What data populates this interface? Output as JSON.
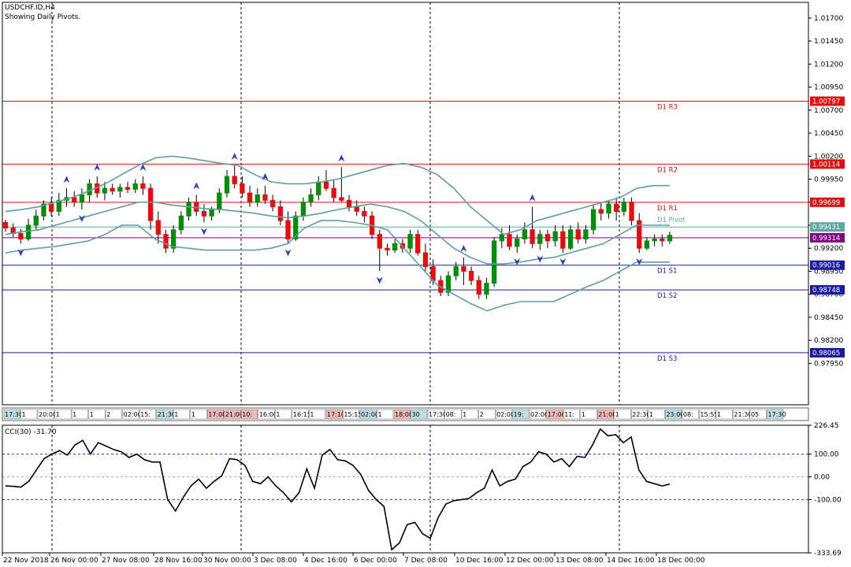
{
  "header": {
    "symbol_title": "USDCHF.ID,H4",
    "subtitle": "Showing Daily Pivots."
  },
  "chart_data": [
    {
      "type": "candlestick",
      "title": "USDCHF.ID,H4",
      "ylim": [
        0.975,
        1.0187
      ],
      "y_ticks": [
        "1.01700",
        "1.01450",
        "1.01200",
        "1.00950",
        "1.00700",
        "1.00450",
        "1.00200",
        "0.99950",
        "0.99700",
        "0.99450",
        "0.99200",
        "0.98950",
        "0.98700",
        "0.98450",
        "0.98200",
        "0.97950"
      ],
      "pivots": [
        {
          "name": "D1 R3",
          "value": 1.00797,
          "label": "1.00797",
          "color": "#dd1111"
        },
        {
          "name": "D1 R2",
          "value": 1.00114,
          "label": "1.00114",
          "color": "#dd1111"
        },
        {
          "name": "D1 R1",
          "value": 0.99699,
          "label": "0.99699",
          "color": "#dd1111"
        },
        {
          "name": "D1 Pivot",
          "value": 0.99431,
          "label": "0.99431",
          "color": "#5fa8a0"
        },
        {
          "name": "",
          "value": 0.99314,
          "label": "0.99314",
          "color": "#800080"
        },
        {
          "name": "D1 S1",
          "value": 0.99016,
          "label": "0.99016",
          "color": "#1a1aa0"
        },
        {
          "name": "D1 S2",
          "value": 0.98748,
          "label": "0.98748",
          "color": "#1a1aa0"
        },
        {
          "name": "D1 S3",
          "value": 0.98065,
          "label": "0.98065",
          "color": "#1a1aa0"
        }
      ],
      "bollinger": {
        "upper": [
          0.996,
          0.9962,
          0.9965,
          0.997,
          0.9975,
          0.9982,
          0.999,
          1.0,
          1.001,
          1.0018,
          1.002,
          1.0018,
          1.0015,
          1.0012,
          1.001,
          1.0,
          0.9992,
          0.999,
          0.999,
          0.9992,
          0.9995,
          1.0,
          1.0005,
          1.001,
          1.0012,
          1.0008,
          1.0,
          0.9985,
          0.9965,
          0.995,
          0.9935,
          0.994,
          0.995,
          0.9955,
          0.996,
          0.9965,
          0.997,
          0.9975,
          0.9985,
          0.9988,
          0.9988
        ],
        "middle": [
          0.9935,
          0.9938,
          0.994,
          0.9945,
          0.995,
          0.9955,
          0.996,
          0.9965,
          0.997,
          0.997,
          0.9967,
          0.9965,
          0.9963,
          0.9962,
          0.996,
          0.9958,
          0.9955,
          0.9953,
          0.9955,
          0.9958,
          0.9962,
          0.9965,
          0.9968,
          0.9965,
          0.996,
          0.995,
          0.9935,
          0.992,
          0.991,
          0.9903,
          0.9903,
          0.9905,
          0.9908,
          0.991,
          0.9915,
          0.992,
          0.9925,
          0.9935,
          0.9945,
          0.9945,
          0.9945
        ],
        "lower": [
          0.9915,
          0.9918,
          0.992,
          0.9922,
          0.9925,
          0.9928,
          0.9935,
          0.9945,
          0.9945,
          0.993,
          0.9922,
          0.992,
          0.9918,
          0.9918,
          0.9918,
          0.9918,
          0.992,
          0.9925,
          0.9942,
          0.995,
          0.995,
          0.9948,
          0.9945,
          0.994,
          0.992,
          0.99,
          0.988,
          0.987,
          0.986,
          0.9852,
          0.9858,
          0.9862,
          0.9862,
          0.9862,
          0.987,
          0.9878,
          0.9885,
          0.9895,
          0.9905,
          0.9905,
          0.9905
        ]
      },
      "candles": [
        [
          0.9948,
          0.9951,
          0.9938,
          0.9942
        ],
        [
          0.9942,
          0.9947,
          0.9932,
          0.9936
        ],
        [
          0.9936,
          0.9941,
          0.9925,
          0.993
        ],
        [
          0.993,
          0.9952,
          0.9928,
          0.9945
        ],
        [
          0.9945,
          0.9962,
          0.994,
          0.9955
        ],
        [
          0.9955,
          0.9972,
          0.995,
          0.9968
        ],
        [
          0.9968,
          0.9975,
          0.9955,
          0.996
        ],
        [
          0.996,
          0.998,
          0.9955,
          0.9972
        ],
        [
          0.9972,
          0.9985,
          0.9965,
          0.9975
        ],
        [
          0.9975,
          0.9982,
          0.9965,
          0.997
        ],
        [
          0.997,
          0.9985,
          0.9962,
          0.9978
        ],
        [
          0.9978,
          0.9995,
          0.997,
          0.999
        ],
        [
          0.999,
          0.9998,
          0.9975,
          0.998
        ],
        [
          0.998,
          0.9992,
          0.9972,
          0.9985
        ],
        [
          0.9985,
          0.999,
          0.9978,
          0.9982
        ],
        [
          0.9982,
          0.999,
          0.9975,
          0.9986
        ],
        [
          0.9986,
          0.9992,
          0.998,
          0.9984
        ],
        [
          0.9984,
          0.9995,
          0.998,
          0.999
        ],
        [
          0.999,
          0.9998,
          0.9978,
          0.9985
        ],
        [
          0.9985,
          0.999,
          0.994,
          0.995
        ],
        [
          0.995,
          0.996,
          0.9925,
          0.9935
        ],
        [
          0.9935,
          0.994,
          0.9915,
          0.992
        ],
        [
          0.992,
          0.9945,
          0.9915,
          0.994
        ],
        [
          0.994,
          0.996,
          0.9935,
          0.9955
        ],
        [
          0.9955,
          0.9975,
          0.995,
          0.997
        ],
        [
          0.997,
          0.9978,
          0.9955,
          0.996
        ],
        [
          0.996,
          0.9968,
          0.9948,
          0.9955
        ],
        [
          0.9955,
          0.9965,
          0.995,
          0.9962
        ],
        [
          0.9962,
          0.9985,
          0.9958,
          0.998
        ],
        [
          0.998,
          1.0005,
          0.9975,
          0.9998
        ],
        [
          0.9998,
          1.001,
          0.9985,
          0.999
        ],
        [
          0.999,
          0.9998,
          0.9975,
          0.998
        ],
        [
          0.998,
          0.9988,
          0.9965,
          0.997
        ],
        [
          0.997,
          0.9985,
          0.9965,
          0.9978
        ],
        [
          0.9978,
          0.9988,
          0.9968,
          0.9972
        ],
        [
          0.9972,
          0.9978,
          0.996,
          0.9965
        ],
        [
          0.9965,
          0.9972,
          0.9945,
          0.995
        ],
        [
          0.995,
          0.996,
          0.9925,
          0.993
        ],
        [
          0.993,
          0.996,
          0.9928,
          0.9955
        ],
        [
          0.9955,
          0.9975,
          0.995,
          0.997
        ],
        [
          0.997,
          0.9985,
          0.9965,
          0.9978
        ],
        [
          0.9978,
          0.9998,
          0.9972,
          0.9992
        ],
        [
          0.9992,
          1.0005,
          0.9982,
          0.9985
        ],
        [
          0.9985,
          0.9995,
          0.997,
          0.9975
        ],
        [
          0.9975,
          1.0008,
          0.997,
          0.9972
        ],
        [
          0.9972,
          0.9978,
          0.996,
          0.9965
        ],
        [
          0.9965,
          0.9972,
          0.9955,
          0.996
        ],
        [
          0.996,
          0.9965,
          0.9948,
          0.9955
        ],
        [
          0.9955,
          0.996,
          0.993,
          0.9935
        ],
        [
          0.9935,
          0.994,
          0.9895,
          0.992
        ],
        [
          0.992,
          0.9925,
          0.9912,
          0.9918
        ],
        [
          0.9918,
          0.993,
          0.9915,
          0.9925
        ],
        [
          0.9925,
          0.993,
          0.9915,
          0.992
        ],
        [
          0.992,
          0.994,
          0.9915,
          0.9935
        ],
        [
          0.9935,
          0.994,
          0.9912,
          0.9915
        ],
        [
          0.9915,
          0.9925,
          0.9895,
          0.99
        ],
        [
          0.99,
          0.9908,
          0.988,
          0.9885
        ],
        [
          0.9885,
          0.989,
          0.9868,
          0.9872
        ],
        [
          0.9872,
          0.9895,
          0.9868,
          0.989
        ],
        [
          0.989,
          0.9905,
          0.9885,
          0.99
        ],
        [
          0.99,
          0.991,
          0.988,
          0.9895
        ],
        [
          0.9895,
          0.99,
          0.988,
          0.9885
        ],
        [
          0.9885,
          0.989,
          0.9865,
          0.987
        ],
        [
          0.987,
          0.9888,
          0.9865,
          0.9882
        ],
        [
          0.9882,
          0.9932,
          0.9878,
          0.9928
        ],
        [
          0.9928,
          0.9942,
          0.992,
          0.9935
        ],
        [
          0.9935,
          0.9945,
          0.9918,
          0.9922
        ],
        [
          0.9922,
          0.9935,
          0.9915,
          0.993
        ],
        [
          0.993,
          0.9948,
          0.9925,
          0.994
        ],
        [
          0.994,
          0.9965,
          0.992,
          0.9925
        ],
        [
          0.9925,
          0.994,
          0.9918,
          0.9935
        ],
        [
          0.9935,
          0.994,
          0.992,
          0.9928
        ],
        [
          0.9928,
          0.9945,
          0.9922,
          0.9938
        ],
        [
          0.9938,
          0.9945,
          0.9915,
          0.992
        ],
        [
          0.992,
          0.9945,
          0.9918,
          0.994
        ],
        [
          0.994,
          0.9948,
          0.9925,
          0.993
        ],
        [
          0.993,
          0.9945,
          0.9925,
          0.994
        ],
        [
          0.994,
          0.9968,
          0.9935,
          0.9962
        ],
        [
          0.9962,
          0.997,
          0.995,
          0.9958
        ],
        [
          0.9958,
          0.9972,
          0.9952,
          0.9968
        ],
        [
          0.9968,
          0.9975,
          0.995,
          0.996
        ],
        [
          0.996,
          0.9975,
          0.9955,
          0.997
        ],
        [
          0.997,
          0.9975,
          0.9945,
          0.995
        ],
        [
          0.995,
          0.9958,
          0.9915,
          0.992
        ],
        [
          0.992,
          0.9932,
          0.9918,
          0.9928
        ],
        [
          0.9928,
          0.9935,
          0.9922,
          0.993
        ],
        [
          0.993,
          0.9935,
          0.9922,
          0.9928
        ],
        [
          0.9928,
          0.9938,
          0.9925,
          0.9934
        ]
      ],
      "x_ticks": [
        "22 Nov 2018",
        "26 Nov 00:00",
        "27 Nov 08:00",
        "28 Nov 16:00",
        "30 Nov 00:00",
        "3 Dec 08:00",
        "4 Dec 16:00",
        "6 Dec 00:00",
        "7 Dec 08:00",
        "10 Dec 16:00",
        "12 Dec 00:00",
        "13 Dec 08:00",
        "14 Dec 16:00",
        "18 Dec 00:00"
      ],
      "session_strip": [
        "17:30",
        "1",
        "20:00",
        "1",
        "1",
        "1",
        "2",
        "02:00",
        "15:",
        "21:30",
        "1",
        "1",
        "17:00",
        "21:00",
        "10:",
        "16:00",
        "1",
        "16:15",
        "1",
        "17:10",
        "15:15",
        "02:00",
        "1",
        "18:00",
        "30",
        "17:30",
        "08:",
        "1",
        "2",
        "02:00",
        "19:",
        "02:00",
        "17:00",
        "11:",
        "1",
        "21:00",
        "1",
        "22:30",
        "1",
        "23:00",
        "08:",
        "15:55",
        "1",
        "21:30",
        "05",
        "17:30"
      ]
    },
    {
      "type": "line",
      "title": "CCI(30) -31.70",
      "ylim": [
        -333.69,
        226.45
      ],
      "y_ticks": [
        "226.45",
        "100.00",
        "0.00",
        "-100.00",
        "-333.69"
      ],
      "series": [
        {
          "name": "CCI(30)",
          "values": [
            -40,
            -42,
            -45,
            -20,
            30,
            80,
            100,
            115,
            95,
            140,
            160,
            100,
            150,
            135,
            120,
            110,
            85,
            100,
            75,
            65,
            65,
            -100,
            -150,
            -90,
            -40,
            -10,
            -50,
            -20,
            5,
            80,
            75,
            50,
            -20,
            -30,
            0,
            -40,
            -70,
            -110,
            -70,
            35,
            -50,
            95,
            120,
            75,
            70,
            50,
            10,
            -60,
            -100,
            -130,
            -320,
            -290,
            -210,
            -200,
            -250,
            -270,
            -180,
            -120,
            -105,
            -100,
            -95,
            -70,
            -50,
            30,
            -40,
            -20,
            -10,
            45,
            65,
            110,
            100,
            65,
            80,
            45,
            90,
            85,
            140,
            210,
            180,
            185,
            150,
            175,
            30,
            -20,
            -30,
            -40,
            -31.7
          ]
        }
      ]
    }
  ]
}
